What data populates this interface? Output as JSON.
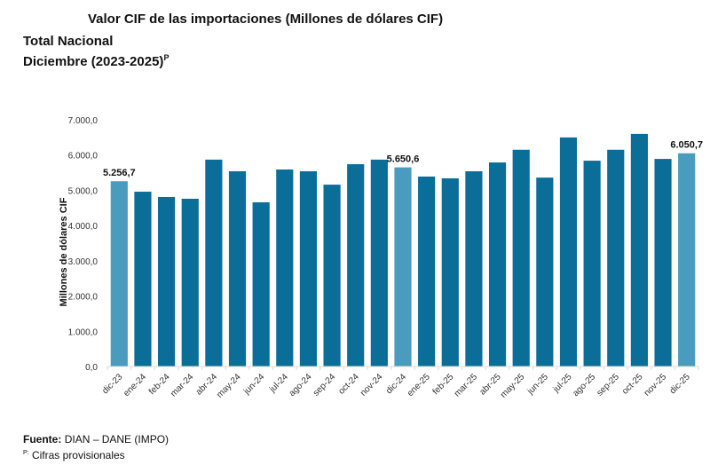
{
  "header": {
    "title": "Valor CIF de las importaciones (Millones de dólares CIF)",
    "subtitle": "Total Nacional",
    "period": "Diciembre (2023-2025)",
    "period_sup": "P"
  },
  "footer": {
    "source_label": "Fuente:",
    "source_value": "DIAN – DANE (IMPO)",
    "note_sup": "P:",
    "note_text": "Cifras provisionales"
  },
  "colors": {
    "bar": "#0b6e99",
    "highlight": "#4a9cbf"
  },
  "chart_data": {
    "type": "bar",
    "title": "Valor CIF de las importaciones (Millones de dólares CIF)",
    "xlabel": "",
    "ylabel": "Millones de dólares CIF",
    "ylim": [
      0,
      7000
    ],
    "yticks": [
      0,
      1000,
      2000,
      3000,
      4000,
      5000,
      6000,
      7000
    ],
    "ytick_labels": [
      "0,0",
      "1.000,0",
      "2.000,0",
      "3.000,0",
      "4.000,0",
      "5.000,0",
      "6.000,0",
      "7.000,0"
    ],
    "grid": false,
    "categories": [
      "dic-23",
      "ene-24",
      "feb-24",
      "mar-24",
      "abr-24",
      "may-24",
      "jun-24",
      "jul-24",
      "ago-24",
      "sep-24",
      "oct-24",
      "nov-24",
      "dic-24",
      "ene-25",
      "feb-25",
      "mar-25",
      "abr-25",
      "may-25",
      "jun-25",
      "jul-25",
      "ago-25",
      "sep-25",
      "oct-25",
      "nov-25",
      "dic-25"
    ],
    "values": [
      5256.7,
      4960,
      4810,
      4760,
      5870,
      5540,
      4660,
      5590,
      5540,
      5160,
      5740,
      5870,
      5650.6,
      5390,
      5340,
      5540,
      5790,
      6150,
      5360,
      6500,
      5840,
      6150,
      6600,
      5890,
      6050.7
    ],
    "highlighted": [
      "dic-23",
      "dic-24",
      "dic-25"
    ],
    "data_labels": {
      "dic-23": "5.256,7",
      "dic-24": "5.650,6",
      "dic-25": "6.050,7"
    }
  }
}
